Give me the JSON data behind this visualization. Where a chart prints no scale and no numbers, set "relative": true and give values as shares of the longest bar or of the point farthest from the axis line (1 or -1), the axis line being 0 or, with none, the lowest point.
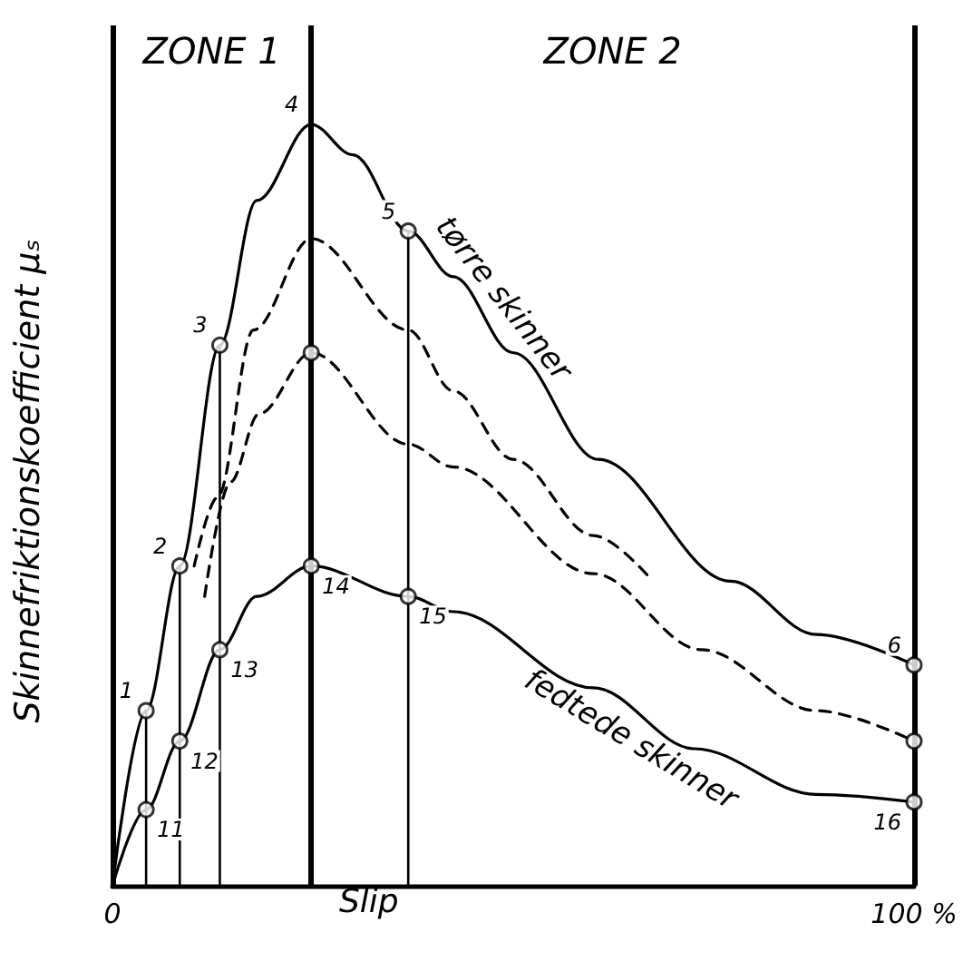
{
  "chart_data": {
    "type": "line",
    "relative": true,
    "xlabel": "Slip",
    "ylabel": "Skinnefriktionskoefficient μₛ",
    "marker": "none",
    "xlim": [
      0,
      100
    ],
    "xticks": [
      0,
      {
        "value": 100,
        "label": "100 %"
      }
    ],
    "series": [
      {
        "name": "tørre skinner",
        "color": "#000000",
        "x": [
          0,
          4.2,
          8.4,
          13.4,
          18,
          24.8,
          30,
          36.9,
          42.5,
          50,
          60.6,
          77.1,
          87.8,
          100
        ],
        "values": [
          0,
          0.23,
          0.42,
          0.71,
          0.9,
          1.0,
          0.96,
          0.86,
          0.8,
          0.7,
          0.56,
          0.4,
          0.33,
          0.29
        ]
      },
      {
        "color": "#000000",
        "line_style": "dashed",
        "x": [
          10.2,
          13.1,
          17.6,
          24.8,
          36.9,
          42.5,
          50,
          60,
          67.4
        ],
        "values": [
          0.42,
          0.51,
          0.73,
          0.85,
          0.73,
          0.65,
          0.56,
          0.46,
          0.4
        ]
      },
      {
        "color": "#000000",
        "line_style": "dashed",
        "x": [
          11.5,
          14.7,
          18.3,
          24.8,
          36.9,
          42.5,
          60,
          73.5,
          87.8,
          100
        ],
        "values": [
          0.38,
          0.53,
          0.62,
          0.7,
          0.58,
          0.55,
          0.41,
          0.31,
          0.23,
          0.19
        ]
      },
      {
        "name": "fedtede skinner",
        "color": "#000000",
        "x": [
          0,
          4.2,
          8.4,
          13.4,
          18,
          24.8,
          36.9,
          42.5,
          60,
          72.6,
          87.8,
          100
        ],
        "values": [
          0,
          0.1,
          0.19,
          0.31,
          0.38,
          0.42,
          0.38,
          0.36,
          0.26,
          0.18,
          0.12,
          0.11
        ]
      },
      {
        "type": "lollipop",
        "marker": "circle",
        "color": "#000000",
        "x": [
          4.2,
          8.4,
          13.4,
          36.9,
          100
        ],
        "values": [
          0.23,
          0.42,
          0.71,
          0.86,
          0.29
        ]
      },
      {
        "type": "scatter",
        "marker": "circle",
        "color": "#000000",
        "x": [
          4.2,
          8.4,
          13.4,
          24.8,
          36.9,
          100,
          24.8,
          100
        ],
        "values": [
          0.1,
          0.19,
          0.31,
          0.42,
          0.38,
          0.11,
          0.7,
          0.19
        ]
      }
    ],
    "ref_lines": [
      {
        "axis": "x",
        "value": 0
      },
      {
        "axis": "x",
        "value": 24.8
      },
      {
        "axis": "x",
        "value": 100
      }
    ],
    "annotations": [
      "ZONE 1",
      "ZONE 2",
      {
        "text": "1",
        "x": 4.2,
        "y": 0.23
      },
      {
        "text": "2",
        "x": 8.4,
        "y": 0.42
      },
      {
        "text": "3",
        "x": 13.4,
        "y": 0.71
      },
      {
        "text": "4",
        "x": 24.8,
        "y": 1.0
      },
      {
        "text": "5",
        "x": 36.9,
        "y": 0.86
      },
      {
        "text": "6",
        "x": 100,
        "y": 0.29
      },
      {
        "text": "11",
        "x": 4.2,
        "y": 0.1
      },
      {
        "text": "12",
        "x": 8.4,
        "y": 0.19
      },
      {
        "text": "13",
        "x": 13.4,
        "y": 0.31
      },
      {
        "text": "14",
        "x": 24.8,
        "y": 0.42
      },
      {
        "text": "15",
        "x": 36.9,
        "y": 0.38
      },
      {
        "text": "16",
        "x": 100,
        "y": 0.11
      }
    ]
  }
}
